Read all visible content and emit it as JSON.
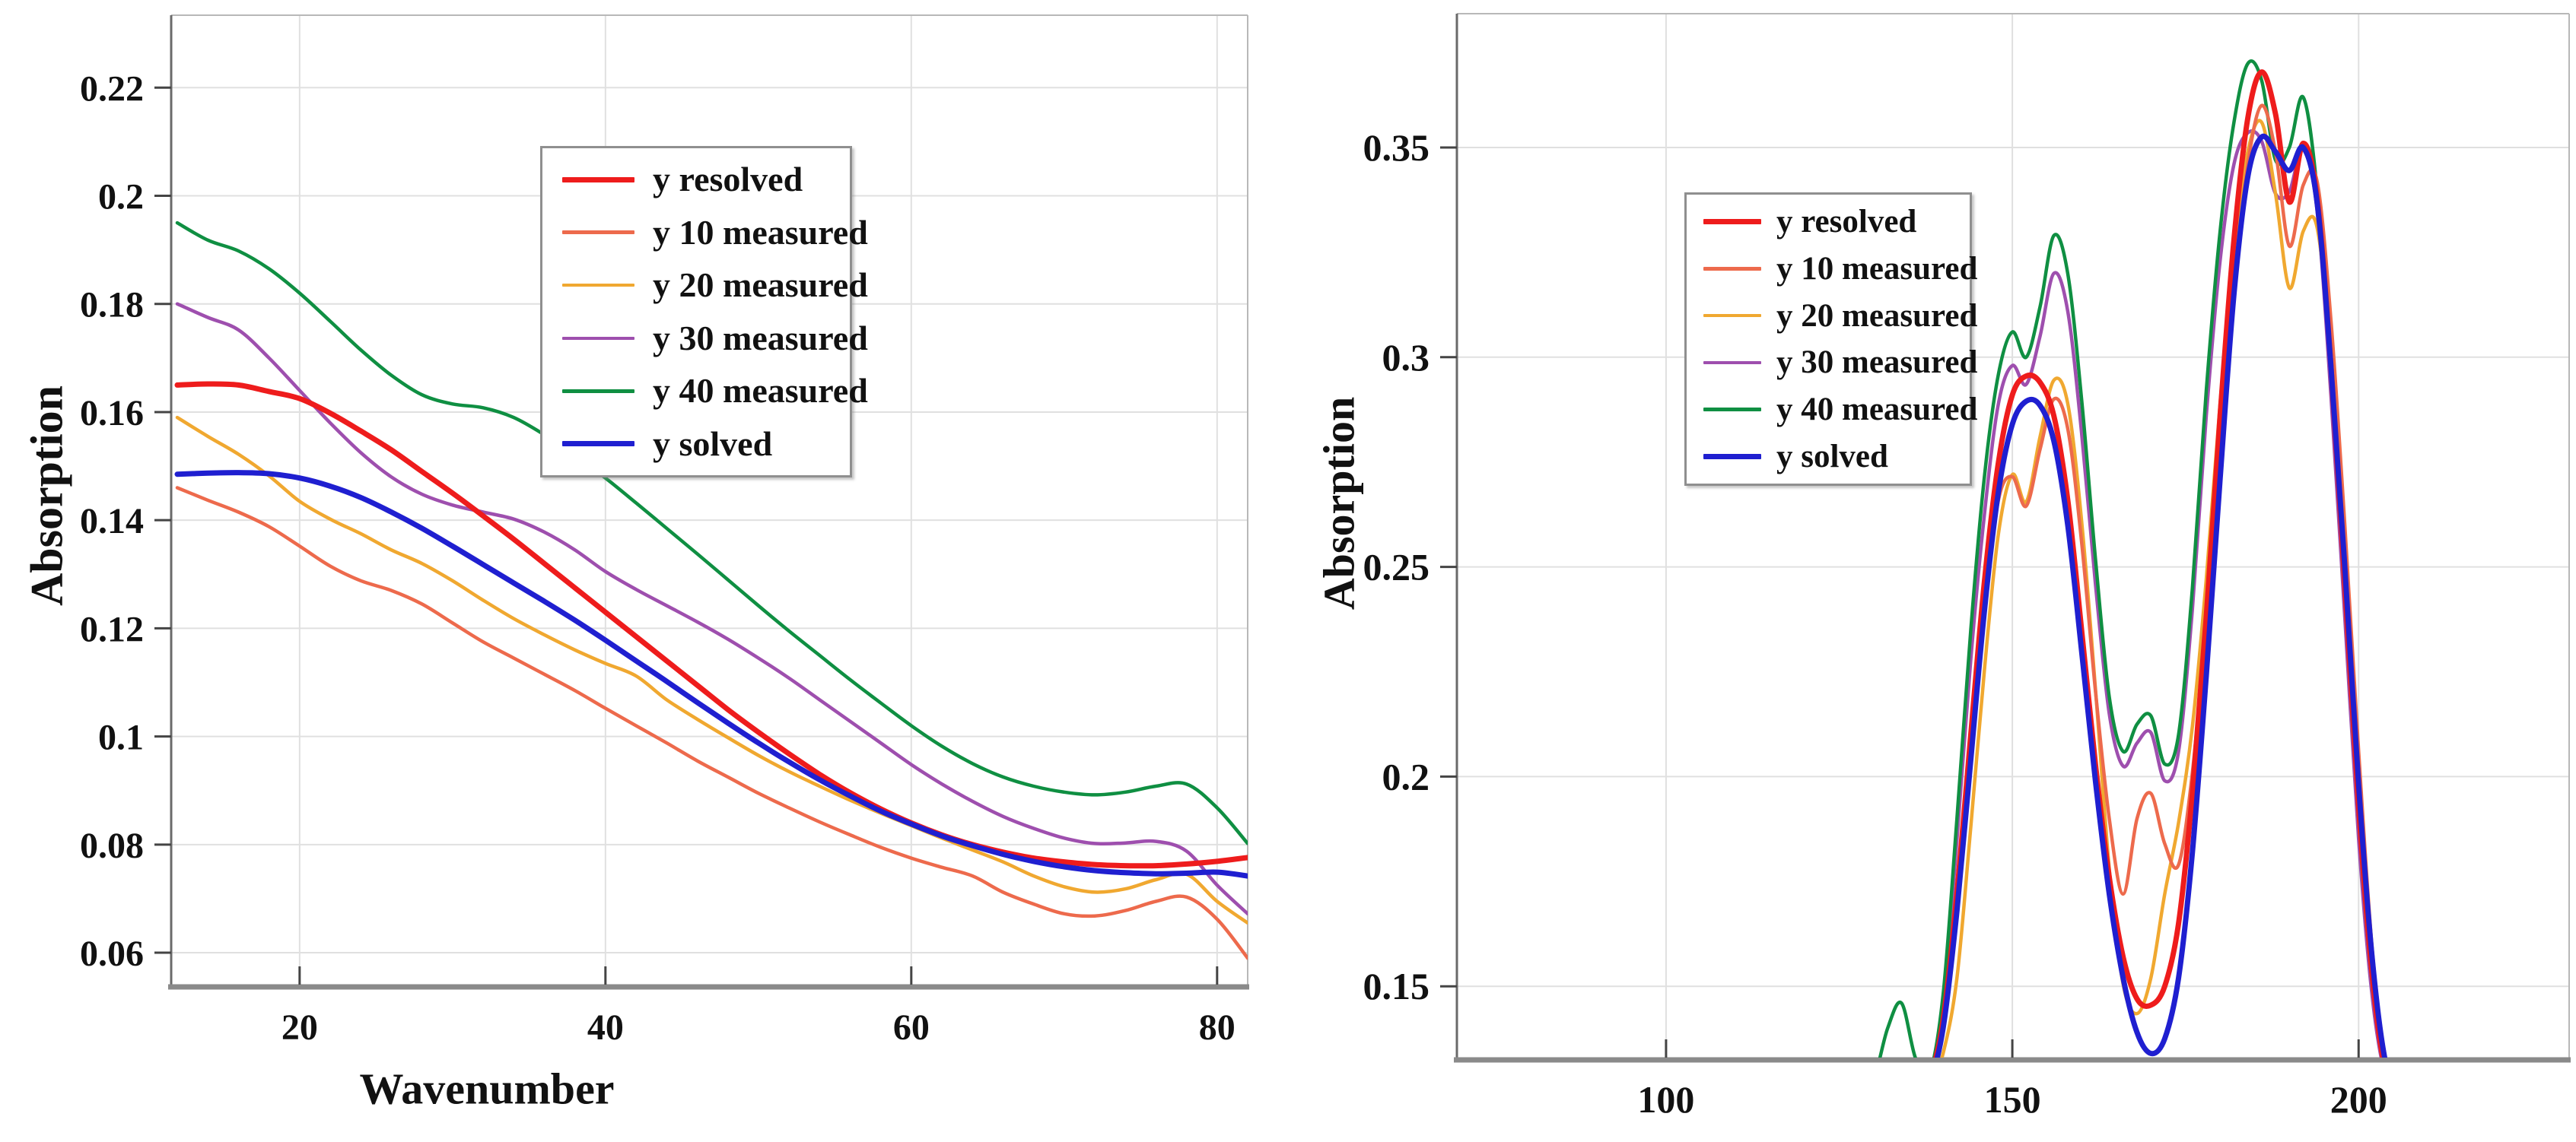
{
  "figure": {
    "background": "#ffffff",
    "grid_color": "#e0e0e0",
    "axis_color": "#8a8a8a",
    "tick_color": "#444444",
    "text_color": "#111111"
  },
  "chart_data": [
    {
      "type": "line",
      "title": "",
      "xlabel": "Wavenumber",
      "ylabel": "Absorption",
      "xlim": [
        11.6,
        82.0
      ],
      "ylim": [
        0.0541,
        0.2334
      ],
      "grid": true,
      "legend_position": "upper center-left inside",
      "xticks": [
        20,
        40,
        60,
        80
      ],
      "xtick_labels": [
        "20",
        "40",
        "60",
        "80"
      ],
      "yticks": [
        0.06,
        0.08,
        0.1,
        0.12,
        0.14,
        0.16,
        0.18,
        0.2,
        0.22
      ],
      "ytick_labels": [
        "0.06",
        "0.08",
        "0.1",
        "0.12",
        "0.14",
        "0.16",
        "0.18",
        "0.2",
        "0.22"
      ],
      "x": [
        12,
        14,
        16,
        18,
        20,
        22,
        24,
        26,
        28,
        30,
        32,
        34,
        36,
        38,
        40,
        42,
        44,
        46,
        48,
        50,
        52,
        54,
        56,
        58,
        60,
        62,
        64,
        66,
        68,
        70,
        72,
        74,
        76,
        78,
        80,
        82
      ],
      "series": [
        {
          "name": "y resolved",
          "color": "#ee1c1c",
          "width": 7,
          "values": [
            0.165,
            0.1652,
            0.165,
            0.1638,
            0.1625,
            0.1598,
            0.1565,
            0.153,
            0.149,
            0.145,
            0.1408,
            0.1365,
            0.132,
            0.1275,
            0.123,
            0.1185,
            0.114,
            0.1095,
            0.105,
            0.1008,
            0.0968,
            0.093,
            0.0896,
            0.0866,
            0.084,
            0.0818,
            0.08,
            0.0786,
            0.0775,
            0.0768,
            0.0763,
            0.0761,
            0.0761,
            0.0764,
            0.0769,
            0.0776
          ]
        },
        {
          "name": "y 10 measured",
          "color": "#ed6a4c",
          "width": 4.5,
          "values": [
            0.146,
            0.1437,
            0.1415,
            0.1388,
            0.1352,
            0.1315,
            0.1288,
            0.127,
            0.1245,
            0.121,
            0.1175,
            0.1145,
            0.1115,
            0.1085,
            0.1052,
            0.102,
            0.0988,
            0.0955,
            0.0925,
            0.0895,
            0.0868,
            0.0842,
            0.0818,
            0.0795,
            0.0775,
            0.0758,
            0.0742,
            0.0712,
            0.069,
            0.0672,
            0.0668,
            0.0678,
            0.0695,
            0.0703,
            0.0662,
            0.059
          ]
        },
        {
          "name": "y 20 measured",
          "color": "#f0a830",
          "width": 4.5,
          "values": [
            0.159,
            0.1555,
            0.1522,
            0.1482,
            0.1435,
            0.1402,
            0.1375,
            0.1345,
            0.132,
            0.1288,
            0.1252,
            0.1218,
            0.1188,
            0.116,
            0.1135,
            0.1112,
            0.1068,
            0.1032,
            0.0998,
            0.0965,
            0.0935,
            0.0908,
            0.0882,
            0.0858,
            0.0835,
            0.0812,
            0.079,
            0.0768,
            0.0742,
            0.0722,
            0.0712,
            0.0718,
            0.0735,
            0.0745,
            0.0695,
            0.0655
          ]
        },
        {
          "name": "y 30 measured",
          "color": "#9e4fae",
          "width": 4.5,
          "values": [
            0.18,
            0.1775,
            0.1752,
            0.17,
            0.164,
            0.158,
            0.1525,
            0.148,
            0.1448,
            0.1428,
            0.1415,
            0.1402,
            0.1378,
            0.1345,
            0.1305,
            0.1272,
            0.1242,
            0.1212,
            0.118,
            0.1145,
            0.1108,
            0.1068,
            0.1028,
            0.0988,
            0.0948,
            0.0912,
            0.088,
            0.0852,
            0.083,
            0.0812,
            0.0802,
            0.0803,
            0.0806,
            0.0788,
            0.0725,
            0.0672
          ]
        },
        {
          "name": "y 40 measured",
          "color": "#0f8f42",
          "width": 4.5,
          "values": [
            0.195,
            0.1918,
            0.1898,
            0.1865,
            0.182,
            0.1768,
            0.1715,
            0.1668,
            0.1632,
            0.1615,
            0.1608,
            0.159,
            0.1558,
            0.152,
            0.1478,
            0.1432,
            0.1385,
            0.1338,
            0.129,
            0.1242,
            0.1195,
            0.115,
            0.1105,
            0.1062,
            0.102,
            0.0982,
            0.095,
            0.0925,
            0.0908,
            0.0897,
            0.0892,
            0.0897,
            0.0908,
            0.0912,
            0.0868,
            0.0802
          ]
        },
        {
          "name": "y solved",
          "color": "#1f1fd0",
          "width": 7,
          "values": [
            0.1485,
            0.1487,
            0.1488,
            0.1486,
            0.1478,
            0.1463,
            0.1442,
            0.1415,
            0.1385,
            0.1352,
            0.1318,
            0.1284,
            0.125,
            0.1215,
            0.1178,
            0.114,
            0.1102,
            0.1063,
            0.1025,
            0.0988,
            0.0953,
            0.092,
            0.089,
            0.0862,
            0.0838,
            0.0816,
            0.0798,
            0.0782,
            0.0769,
            0.0759,
            0.0752,
            0.0748,
            0.0746,
            0.0747,
            0.0749,
            0.0742
          ]
        }
      ]
    },
    {
      "type": "line",
      "title": "",
      "xlabel": "",
      "ylabel": "Absorption",
      "xlim": [
        69.8,
        230.4
      ],
      "ylim": [
        0.133,
        0.3819
      ],
      "grid": true,
      "legend_position": "upper-left inside",
      "xticks": [
        100,
        150,
        200
      ],
      "xtick_labels": [
        "100",
        "150",
        "200"
      ],
      "yticks": [
        0.15,
        0.2,
        0.25,
        0.3,
        0.35
      ],
      "ytick_labels": [
        "0.15",
        "0.2",
        "0.25",
        "0.3",
        "0.35"
      ],
      "x": [
        126,
        128,
        130,
        132,
        134,
        136,
        138,
        140,
        142,
        144,
        146,
        148,
        150,
        152,
        154,
        156,
        158,
        160,
        162,
        164,
        166,
        168,
        170,
        172,
        174,
        176,
        178,
        180,
        182,
        184,
        186,
        188,
        190,
        192,
        194,
        196,
        198,
        200,
        202,
        204,
        206,
        208,
        210
      ],
      "series": [
        {
          "name": "y resolved",
          "color": "#ee1c1c",
          "width": 7,
          "values": [
            0.126,
            0.126,
            0.126,
            0.126,
            0.126,
            0.127,
            0.128,
            0.142,
            0.172,
            0.21,
            0.247,
            0.275,
            0.291,
            0.2955,
            0.294,
            0.286,
            0.266,
            0.235,
            0.203,
            0.176,
            0.157,
            0.147,
            0.1455,
            0.15,
            0.165,
            0.196,
            0.238,
            0.286,
            0.328,
            0.357,
            0.368,
            0.358,
            0.337,
            0.351,
            0.338,
            0.298,
            0.246,
            0.193,
            0.152,
            0.129,
            0.126,
            0.126,
            0.126
          ]
        },
        {
          "name": "y 10 measured",
          "color": "#ed6a4c",
          "width": 4.5,
          "values": [
            0.126,
            0.126,
            0.126,
            0.126,
            0.126,
            0.126,
            0.126,
            0.142,
            0.168,
            0.204,
            0.24,
            0.266,
            0.2715,
            0.2645,
            0.278,
            0.29,
            0.283,
            0.256,
            0.2205,
            0.19,
            0.172,
            0.19,
            0.196,
            0.184,
            0.179,
            0.201,
            0.237,
            0.278,
            0.316,
            0.346,
            0.36,
            0.349,
            0.3265,
            0.341,
            0.342,
            0.309,
            0.26,
            0.206,
            0.158,
            0.13,
            0.126,
            0.126,
            0.126
          ]
        },
        {
          "name": "y 20 measured",
          "color": "#f0a830",
          "width": 4.5,
          "values": [
            0.126,
            0.126,
            0.126,
            0.126,
            0.126,
            0.126,
            0.126,
            0.134,
            0.152,
            0.188,
            0.226,
            0.258,
            0.272,
            0.2655,
            0.281,
            0.2945,
            0.289,
            0.261,
            0.221,
            0.178,
            0.1505,
            0.1435,
            0.152,
            0.172,
            0.189,
            0.212,
            0.247,
            0.289,
            0.325,
            0.349,
            0.356,
            0.339,
            0.3165,
            0.33,
            0.331,
            0.3,
            0.254,
            0.203,
            0.158,
            0.132,
            0.126,
            0.126,
            0.126
          ]
        },
        {
          "name": "y 30 measured",
          "color": "#9e4fae",
          "width": 4.5,
          "values": [
            0.126,
            0.126,
            0.126,
            0.127,
            0.128,
            0.127,
            0.127,
            0.145,
            0.185,
            0.228,
            0.263,
            0.289,
            0.298,
            0.2935,
            0.305,
            0.32,
            0.311,
            0.282,
            0.246,
            0.215,
            0.2025,
            0.208,
            0.2105,
            0.199,
            0.206,
            0.24,
            0.286,
            0.323,
            0.346,
            0.3535,
            0.3515,
            0.339,
            0.3395,
            0.35,
            0.335,
            0.291,
            0.238,
            0.185,
            0.147,
            0.128,
            0.126,
            0.126,
            0.126
          ]
        },
        {
          "name": "y 40 measured",
          "color": "#0f8f42",
          "width": 4.5,
          "values": [
            0.126,
            0.126,
            0.128,
            0.14,
            0.146,
            0.133,
            0.129,
            0.148,
            0.19,
            0.235,
            0.272,
            0.296,
            0.306,
            0.3,
            0.312,
            0.329,
            0.32,
            0.29,
            0.252,
            0.219,
            0.206,
            0.2125,
            0.2145,
            0.203,
            0.21,
            0.245,
            0.292,
            0.33,
            0.356,
            0.37,
            0.366,
            0.347,
            0.35,
            0.362,
            0.34,
            0.296,
            0.243,
            0.19,
            0.15,
            0.13,
            0.126,
            0.126,
            0.126
          ]
        },
        {
          "name": "y solved",
          "color": "#1f1fd0",
          "width": 7,
          "values": [
            0.126,
            0.126,
            0.126,
            0.126,
            0.126,
            0.126,
            0.127,
            0.14,
            0.168,
            0.204,
            0.24,
            0.268,
            0.284,
            0.2895,
            0.2885,
            0.28,
            0.26,
            0.23,
            0.199,
            0.172,
            0.152,
            0.139,
            0.134,
            0.1375,
            0.152,
            0.182,
            0.224,
            0.271,
            0.315,
            0.343,
            0.3525,
            0.349,
            0.3445,
            0.35,
            0.337,
            0.298,
            0.25,
            0.198,
            0.156,
            0.131,
            0.126,
            0.126,
            0.126
          ]
        }
      ]
    }
  ]
}
